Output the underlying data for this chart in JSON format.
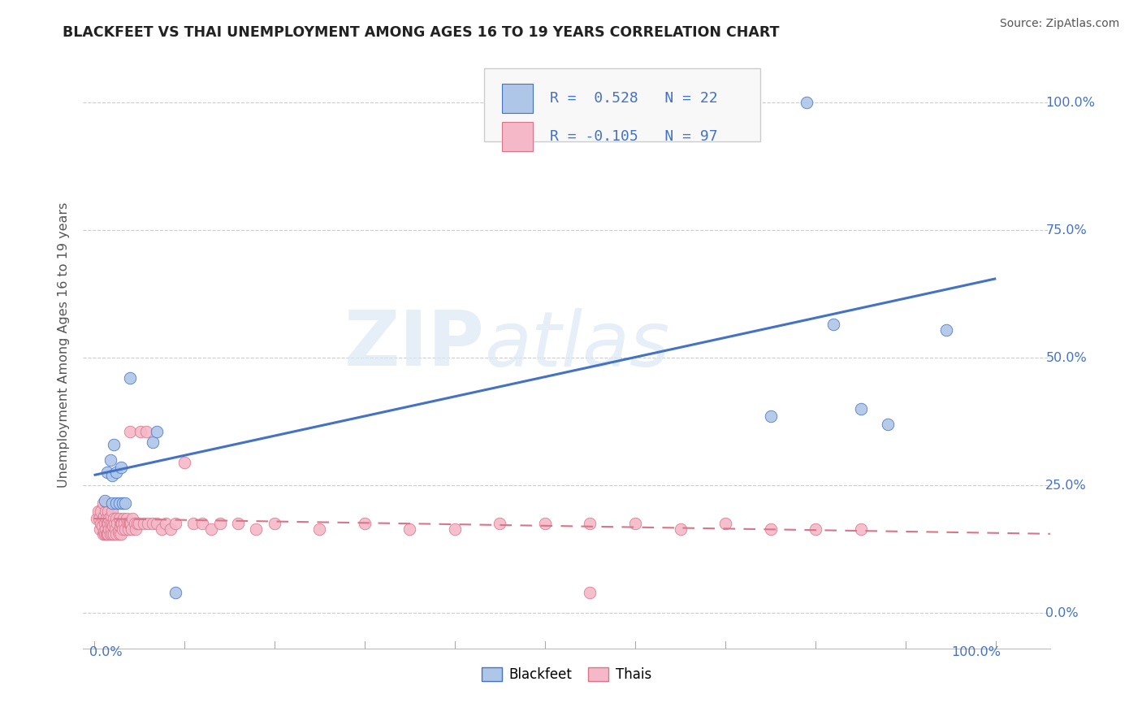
{
  "title": "BLACKFEET VS THAI UNEMPLOYMENT AMONG AGES 16 TO 19 YEARS CORRELATION CHART",
  "source": "Source: ZipAtlas.com",
  "ylabel": "Unemployment Among Ages 16 to 19 years",
  "background_color": "#ffffff",
  "blackfeet_fill": "#aec6e8",
  "blackfeet_edge": "#4472c4",
  "thais_fill": "#f5b8c8",
  "thais_edge": "#d9748a",
  "bf_trend_color": "#4472c4",
  "th_trend_color": "#d9748a",
  "ytick_values": [
    0.0,
    0.25,
    0.5,
    0.75,
    1.0
  ],
  "bf_x": [
    0.012,
    0.015,
    0.018,
    0.02,
    0.02,
    0.022,
    0.025,
    0.025,
    0.028,
    0.03,
    0.032,
    0.035,
    0.04,
    0.065,
    0.07,
    0.09,
    0.75,
    0.79,
    0.82,
    0.85,
    0.88,
    0.945
  ],
  "bf_y": [
    0.22,
    0.275,
    0.3,
    0.215,
    0.27,
    0.33,
    0.215,
    0.275,
    0.215,
    0.285,
    0.215,
    0.215,
    0.46,
    0.335,
    0.355,
    0.04,
    0.385,
    1.0,
    0.565,
    0.4,
    0.37,
    0.555
  ],
  "th_x": [
    0.003,
    0.005,
    0.006,
    0.007,
    0.008,
    0.008,
    0.009,
    0.01,
    0.01,
    0.01,
    0.011,
    0.011,
    0.012,
    0.012,
    0.013,
    0.013,
    0.014,
    0.014,
    0.015,
    0.015,
    0.015,
    0.016,
    0.016,
    0.016,
    0.017,
    0.017,
    0.018,
    0.018,
    0.019,
    0.019,
    0.02,
    0.02,
    0.02,
    0.021,
    0.022,
    0.022,
    0.023,
    0.024,
    0.025,
    0.025,
    0.026,
    0.027,
    0.028,
    0.028,
    0.029,
    0.03,
    0.03,
    0.031,
    0.032,
    0.033,
    0.034,
    0.035,
    0.036,
    0.037,
    0.038,
    0.039,
    0.04,
    0.04,
    0.041,
    0.042,
    0.043,
    0.045,
    0.046,
    0.048,
    0.05,
    0.052,
    0.055,
    0.058,
    0.06,
    0.065,
    0.07,
    0.075,
    0.08,
    0.085,
    0.09,
    0.1,
    0.11,
    0.12,
    0.13,
    0.14,
    0.16,
    0.18,
    0.2,
    0.25,
    0.3,
    0.35,
    0.4,
    0.45,
    0.5,
    0.55,
    0.55,
    0.6,
    0.65,
    0.7,
    0.75,
    0.8,
    0.85
  ],
  "th_y": [
    0.185,
    0.2,
    0.185,
    0.165,
    0.175,
    0.2,
    0.17,
    0.155,
    0.185,
    0.215,
    0.16,
    0.19,
    0.155,
    0.175,
    0.165,
    0.2,
    0.155,
    0.185,
    0.155,
    0.175,
    0.215,
    0.155,
    0.175,
    0.2,
    0.165,
    0.185,
    0.155,
    0.175,
    0.165,
    0.19,
    0.155,
    0.175,
    0.2,
    0.17,
    0.155,
    0.185,
    0.175,
    0.165,
    0.155,
    0.185,
    0.175,
    0.16,
    0.155,
    0.185,
    0.17,
    0.155,
    0.175,
    0.175,
    0.165,
    0.185,
    0.175,
    0.165,
    0.185,
    0.175,
    0.165,
    0.175,
    0.355,
    0.175,
    0.175,
    0.165,
    0.185,
    0.175,
    0.165,
    0.175,
    0.175,
    0.355,
    0.175,
    0.355,
    0.175,
    0.175,
    0.175,
    0.165,
    0.175,
    0.165,
    0.175,
    0.295,
    0.175,
    0.175,
    0.165,
    0.175,
    0.175,
    0.165,
    0.175,
    0.165,
    0.175,
    0.165,
    0.165,
    0.175,
    0.175,
    0.04,
    0.175,
    0.175,
    0.165,
    0.175,
    0.165,
    0.165,
    0.165
  ]
}
